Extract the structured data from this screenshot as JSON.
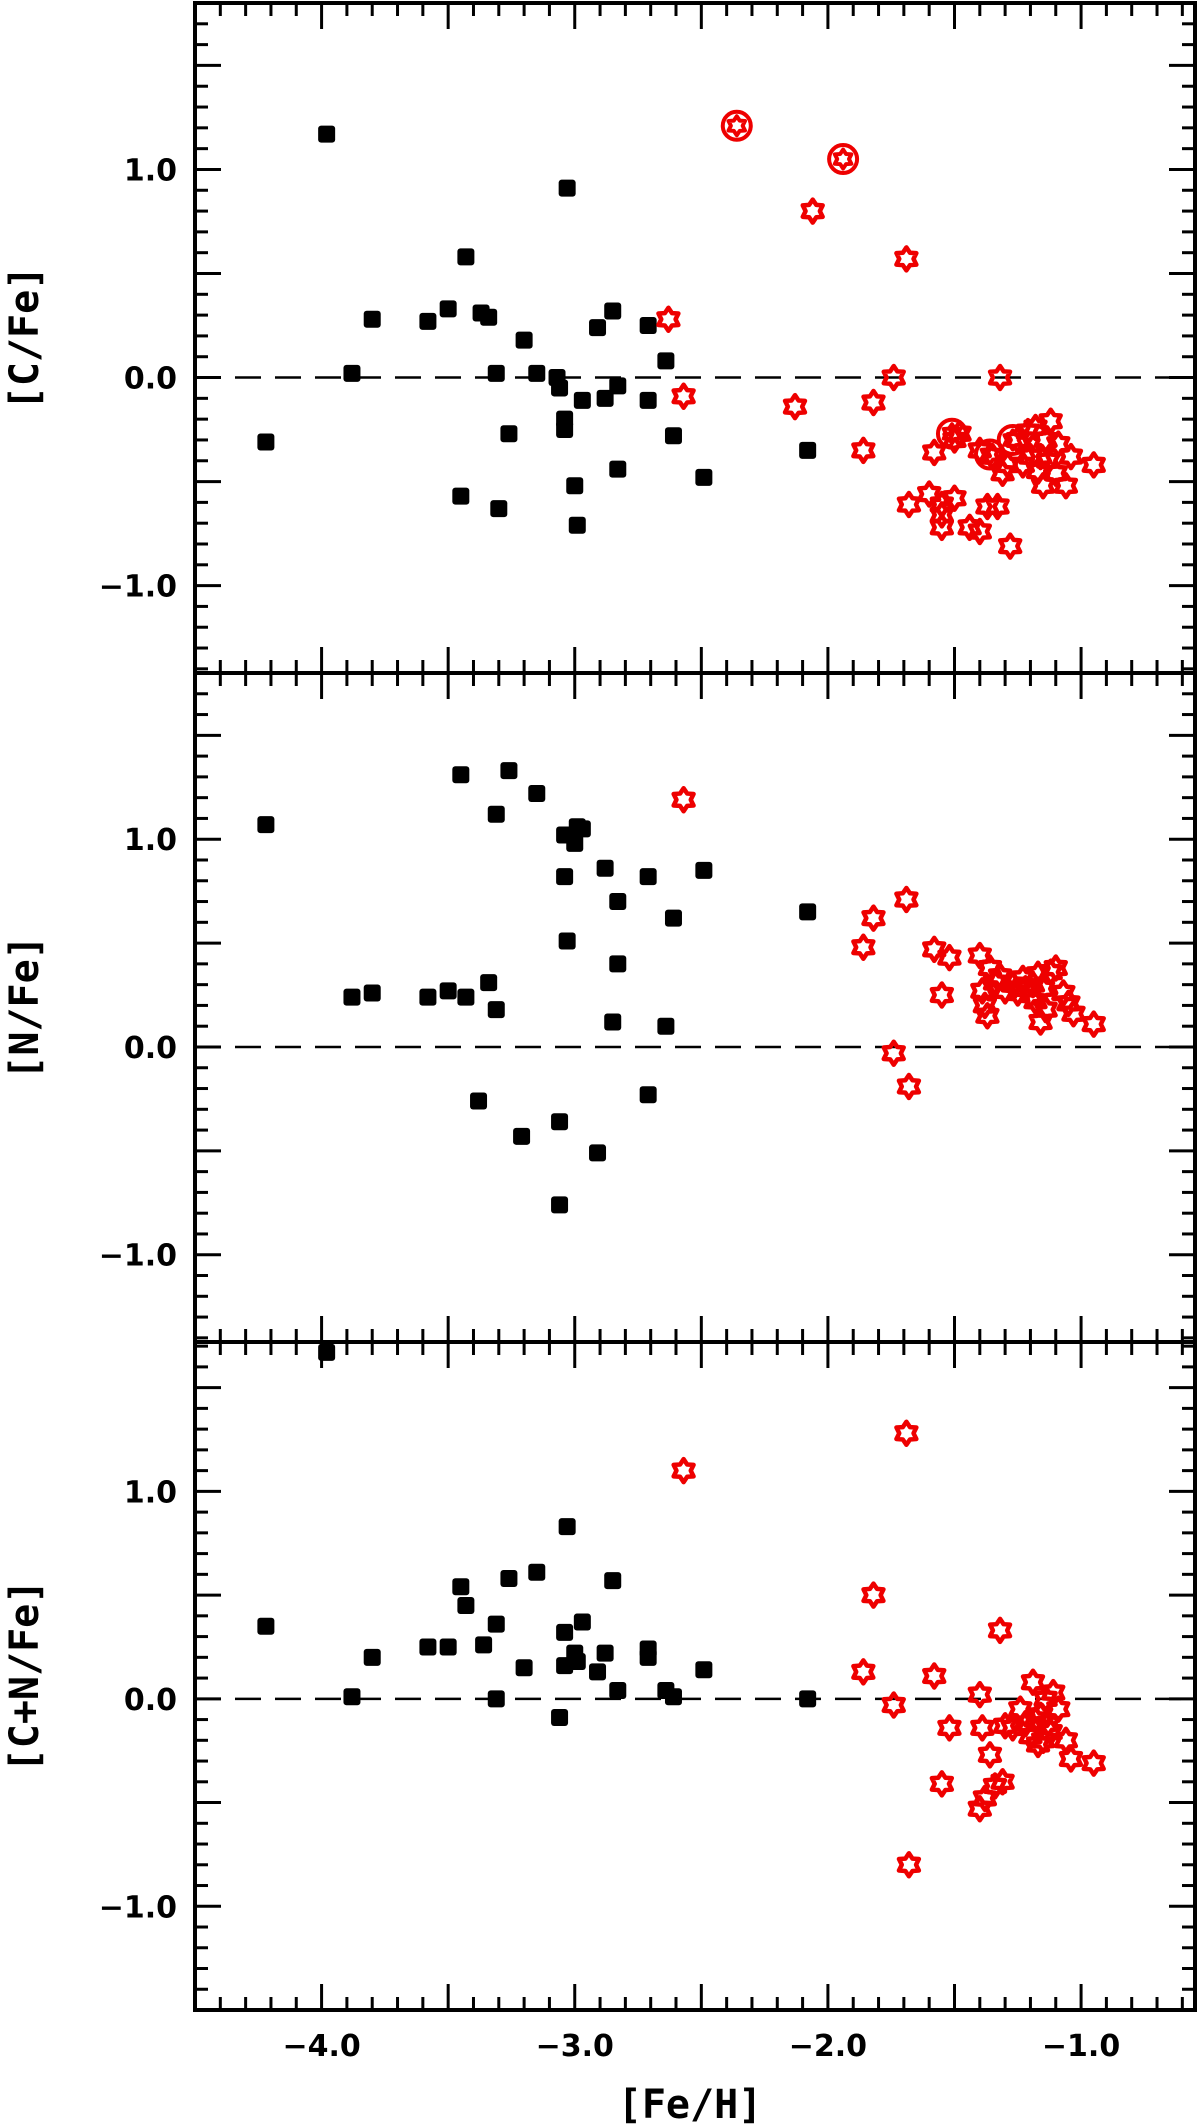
{
  "chart_data": {
    "type": "scatter",
    "x_axis": {
      "label": "[Fe/H]",
      "xlim": [
        -4.5,
        -0.55
      ],
      "ticks": [
        -4.0,
        -3.0,
        -2.0,
        -1.0
      ],
      "tick_labels": [
        "−4.0",
        "−3.0",
        "−2.0",
        "−1.0"
      ]
    },
    "colors": {
      "black_series": "#000000",
      "red_series": "#ee0000"
    },
    "panels": [
      {
        "ylabel": "[C/Fe]",
        "ylim": [
          -1.42,
          1.8
        ],
        "ticks": [
          1.0,
          0.0,
          -1.0
        ],
        "tick_labels": [
          "1.0",
          "0.0",
          "−1.0"
        ],
        "reference_line": 0.0,
        "black_squares": [
          [
            -4.22,
            -0.31
          ],
          [
            -3.98,
            1.17
          ],
          [
            -3.88,
            0.02
          ],
          [
            -3.8,
            0.28
          ],
          [
            -3.58,
            0.27
          ],
          [
            -3.5,
            0.33
          ],
          [
            -3.45,
            -0.57
          ],
          [
            -3.43,
            0.58
          ],
          [
            -3.37,
            0.31
          ],
          [
            -3.34,
            0.29
          ],
          [
            -3.31,
            0.02
          ],
          [
            -3.3,
            -0.63
          ],
          [
            -3.26,
            -0.27
          ],
          [
            -3.2,
            0.18
          ],
          [
            -3.15,
            0.02
          ],
          [
            -3.07,
            0.0
          ],
          [
            -3.06,
            -0.05
          ],
          [
            -3.04,
            -0.2
          ],
          [
            -3.04,
            -0.25
          ],
          [
            -3.03,
            0.91
          ],
          [
            -3.0,
            -0.52
          ],
          [
            -2.99,
            -0.71
          ],
          [
            -2.97,
            -0.11
          ],
          [
            -2.91,
            0.24
          ],
          [
            -2.88,
            -0.1
          ],
          [
            -2.85,
            0.32
          ],
          [
            -2.83,
            -0.04
          ],
          [
            -2.83,
            -0.44
          ],
          [
            -2.71,
            0.25
          ],
          [
            -2.71,
            -0.11
          ],
          [
            -2.64,
            0.08
          ],
          [
            -2.61,
            -0.28
          ],
          [
            -2.49,
            -0.48
          ],
          [
            -2.08,
            -0.35
          ]
        ],
        "red_stars": [
          [
            -2.63,
            0.28
          ],
          [
            -2.57,
            -0.09
          ],
          [
            -2.13,
            -0.14
          ],
          [
            -2.06,
            0.8
          ],
          [
            -1.86,
            -0.35
          ],
          [
            -1.82,
            -0.12
          ],
          [
            -1.74,
            0.0
          ],
          [
            -1.69,
            0.57
          ],
          [
            -1.68,
            -0.61
          ],
          [
            -1.6,
            -0.56
          ],
          [
            -1.58,
            -0.36
          ],
          [
            -1.55,
            -0.61
          ],
          [
            -1.55,
            -0.66
          ],
          [
            -1.55,
            -0.72
          ],
          [
            -1.5,
            -0.58
          ],
          [
            -1.5,
            -0.3
          ],
          [
            -1.48,
            -0.27
          ],
          [
            -1.44,
            -0.72
          ],
          [
            -1.4,
            -0.74
          ],
          [
            -1.4,
            -0.35
          ],
          [
            -1.37,
            -0.62
          ],
          [
            -1.35,
            -0.38
          ],
          [
            -1.33,
            -0.62
          ],
          [
            -1.32,
            0.0
          ],
          [
            -1.31,
            -0.46
          ],
          [
            -1.29,
            -0.42
          ],
          [
            -1.28,
            -0.81
          ],
          [
            -1.25,
            -0.3
          ],
          [
            -1.23,
            -0.42
          ],
          [
            -1.21,
            -0.26
          ],
          [
            -1.2,
            -0.38
          ],
          [
            -1.18,
            -0.24
          ],
          [
            -1.17,
            -0.45
          ],
          [
            -1.16,
            -0.38
          ],
          [
            -1.15,
            -0.52
          ],
          [
            -1.14,
            -0.3
          ],
          [
            -1.13,
            -0.4
          ],
          [
            -1.12,
            -0.21
          ],
          [
            -1.1,
            -0.46
          ],
          [
            -1.09,
            -0.32
          ],
          [
            -1.06,
            -0.52
          ],
          [
            -1.04,
            -0.38
          ],
          [
            -0.95,
            -0.42
          ]
        ],
        "red_circled_stars": [
          [
            -2.36,
            1.21
          ],
          [
            -1.94,
            1.05
          ],
          [
            -1.51,
            -0.27
          ],
          [
            -1.36,
            -0.37
          ],
          [
            -1.27,
            -0.3
          ]
        ]
      },
      {
        "ylabel": "[N/Fe]",
        "ylim": [
          -1.42,
          1.8
        ],
        "ticks": [
          1.0,
          0.0,
          -1.0
        ],
        "tick_labels": [
          "1.0",
          "0.0",
          "−1.0"
        ],
        "reference_line": 0.0,
        "black_squares": [
          [
            -4.22,
            1.07
          ],
          [
            -3.88,
            0.24
          ],
          [
            -3.8,
            0.26
          ],
          [
            -3.58,
            0.24
          ],
          [
            -3.5,
            0.27
          ],
          [
            -3.45,
            1.31
          ],
          [
            -3.43,
            0.24
          ],
          [
            -3.38,
            -0.26
          ],
          [
            -3.34,
            0.31
          ],
          [
            -3.31,
            1.12
          ],
          [
            -3.31,
            0.18
          ],
          [
            -3.26,
            1.33
          ],
          [
            -3.21,
            -0.43
          ],
          [
            -3.15,
            1.22
          ],
          [
            -3.06,
            -0.36
          ],
          [
            -3.06,
            -0.76
          ],
          [
            -3.04,
            1.02
          ],
          [
            -3.04,
            0.82
          ],
          [
            -3.03,
            0.51
          ],
          [
            -3.0,
            0.98
          ],
          [
            -2.99,
            1.06
          ],
          [
            -2.97,
            1.05
          ],
          [
            -2.91,
            -0.51
          ],
          [
            -2.88,
            0.86
          ],
          [
            -2.85,
            0.12
          ],
          [
            -2.83,
            0.7
          ],
          [
            -2.83,
            0.4
          ],
          [
            -2.71,
            0.82
          ],
          [
            -2.71,
            -0.23
          ],
          [
            -2.64,
            0.1
          ],
          [
            -2.61,
            0.62
          ],
          [
            -2.49,
            0.85
          ],
          [
            -2.08,
            0.65
          ]
        ],
        "red_stars": [
          [
            -2.57,
            1.19
          ],
          [
            -1.86,
            0.48
          ],
          [
            -1.82,
            0.62
          ],
          [
            -1.74,
            -0.03
          ],
          [
            -1.69,
            0.71
          ],
          [
            -1.68,
            -0.19
          ],
          [
            -1.58,
            0.47
          ],
          [
            -1.55,
            0.25
          ],
          [
            -1.52,
            0.43
          ],
          [
            -1.4,
            0.44
          ],
          [
            -1.39,
            0.27
          ],
          [
            -1.38,
            0.2
          ],
          [
            -1.37,
            0.15
          ],
          [
            -1.36,
            0.38
          ],
          [
            -1.34,
            0.31
          ],
          [
            -1.32,
            0.34
          ],
          [
            -1.3,
            0.27
          ],
          [
            -1.27,
            0.3
          ],
          [
            -1.25,
            0.26
          ],
          [
            -1.23,
            0.33
          ],
          [
            -1.22,
            0.28
          ],
          [
            -1.2,
            0.25
          ],
          [
            -1.19,
            0.3
          ],
          [
            -1.18,
            0.22
          ],
          [
            -1.17,
            0.35
          ],
          [
            -1.16,
            0.12
          ],
          [
            -1.15,
            0.28
          ],
          [
            -1.14,
            0.18
          ],
          [
            -1.12,
            0.36
          ],
          [
            -1.1,
            0.38
          ],
          [
            -1.07,
            0.26
          ],
          [
            -1.05,
            0.21
          ],
          [
            -1.03,
            0.16
          ],
          [
            -0.95,
            0.11
          ]
        ],
        "red_circled_stars": []
      },
      {
        "ylabel": "[C+N/Fe]",
        "ylim": [
          -1.5,
          1.72
        ],
        "ticks": [
          1.0,
          0.0,
          -1.0
        ],
        "tick_labels": [
          "1.0",
          "0.0",
          "−1.0"
        ],
        "reference_line": 0.0,
        "black_squares": [
          [
            -4.22,
            0.35
          ],
          [
            -3.98,
            1.67
          ],
          [
            -3.88,
            0.01
          ],
          [
            -3.8,
            0.2
          ],
          [
            -3.58,
            0.25
          ],
          [
            -3.5,
            0.25
          ],
          [
            -3.45,
            0.54
          ],
          [
            -3.43,
            0.45
          ],
          [
            -3.36,
            0.26
          ],
          [
            -3.31,
            0.36
          ],
          [
            -3.31,
            0.0
          ],
          [
            -3.26,
            0.58
          ],
          [
            -3.2,
            0.15
          ],
          [
            -3.15,
            0.61
          ],
          [
            -3.06,
            -0.09
          ],
          [
            -3.04,
            0.32
          ],
          [
            -3.04,
            0.16
          ],
          [
            -3.03,
            0.83
          ],
          [
            -3.0,
            0.22
          ],
          [
            -2.99,
            0.18
          ],
          [
            -2.97,
            0.37
          ],
          [
            -2.91,
            0.13
          ],
          [
            -2.88,
            0.22
          ],
          [
            -2.85,
            0.57
          ],
          [
            -2.83,
            0.04
          ],
          [
            -2.71,
            0.24
          ],
          [
            -2.71,
            0.2
          ],
          [
            -2.64,
            0.04
          ],
          [
            -2.61,
            0.01
          ],
          [
            -2.49,
            0.14
          ],
          [
            -2.08,
            0.0
          ]
        ],
        "red_stars": [
          [
            -2.57,
            1.1
          ],
          [
            -1.86,
            0.13
          ],
          [
            -1.82,
            0.5
          ],
          [
            -1.74,
            -0.03
          ],
          [
            -1.69,
            1.28
          ],
          [
            -1.68,
            -0.8
          ],
          [
            -1.58,
            0.11
          ],
          [
            -1.55,
            -0.41
          ],
          [
            -1.52,
            -0.14
          ],
          [
            -1.4,
            0.02
          ],
          [
            -1.4,
            -0.53
          ],
          [
            -1.39,
            -0.14
          ],
          [
            -1.38,
            -0.48
          ],
          [
            -1.36,
            -0.27
          ],
          [
            -1.34,
            -0.42
          ],
          [
            -1.32,
            0.33
          ],
          [
            -1.31,
            -0.4
          ],
          [
            -1.3,
            -0.13
          ],
          [
            -1.27,
            -0.14
          ],
          [
            -1.24,
            -0.05
          ],
          [
            -1.22,
            -0.12
          ],
          [
            -1.2,
            -0.18
          ],
          [
            -1.19,
            0.08
          ],
          [
            -1.18,
            -0.1
          ],
          [
            -1.17,
            -0.22
          ],
          [
            -1.16,
            -0.08
          ],
          [
            -1.15,
            -0.2
          ],
          [
            -1.14,
            0.0
          ],
          [
            -1.13,
            -0.12
          ],
          [
            -1.12,
            -0.16
          ],
          [
            -1.11,
            0.03
          ],
          [
            -1.09,
            -0.05
          ],
          [
            -1.06,
            -0.2
          ],
          [
            -1.04,
            -0.29
          ],
          [
            -0.95,
            -0.31
          ]
        ],
        "red_circled_stars": []
      }
    ]
  }
}
